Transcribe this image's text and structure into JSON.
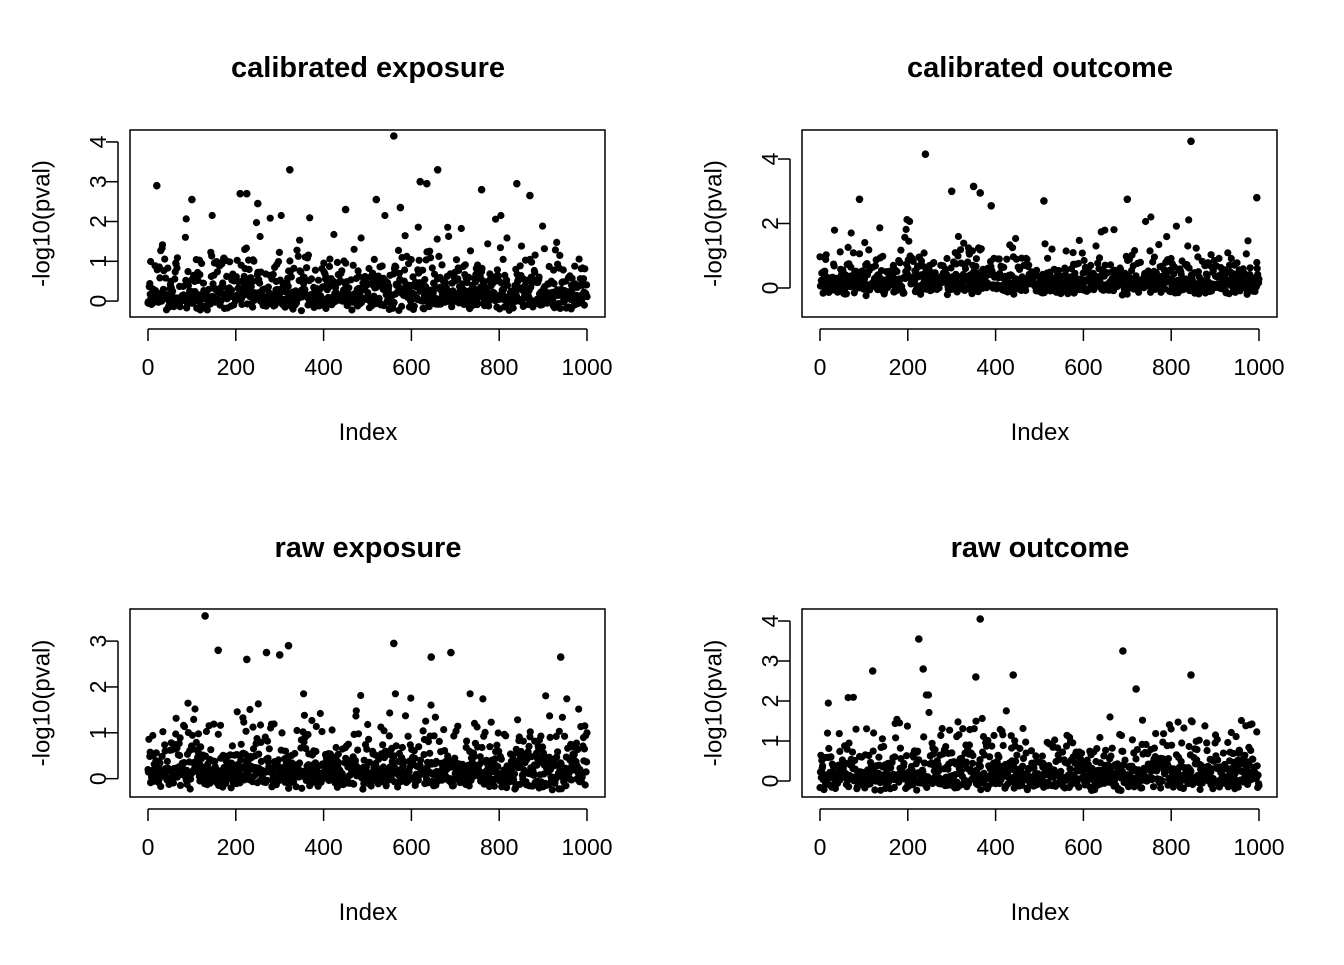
{
  "chart_data": [
    {
      "type": "scatter",
      "title": "calibrated exposure",
      "xlabel": "Index",
      "ylabel": "-log10(pval)",
      "xlim": [
        0,
        1000
      ],
      "ylim": [
        -0.4,
        4.3
      ],
      "xticks": [
        "0",
        "200",
        "400",
        "600",
        "800",
        "1000"
      ],
      "yticks": [
        "0",
        "1",
        "2",
        "3",
        "4"
      ],
      "grid": false,
      "n_points": 1000,
      "series": [
        {
          "x": [
            20,
            225,
            323,
            560,
            620,
            660,
            635,
            840,
            760,
            100,
            210,
            250,
            520,
            450,
            575,
            870
          ],
          "y": [
            2.9,
            2.7,
            3.3,
            4.15,
            3.0,
            3.3,
            2.95,
            2.95,
            2.8,
            2.55,
            2.7,
            2.45,
            2.55,
            2.3,
            2.35,
            2.65
          ]
        }
      ]
    },
    {
      "type": "scatter",
      "title": "calibrated outcome",
      "xlabel": "Index",
      "ylabel": "-log10(pval)",
      "xlim": [
        0,
        1000
      ],
      "ylim": [
        -0.9,
        4.9
      ],
      "xticks": [
        "0",
        "200",
        "400",
        "600",
        "800",
        "1000"
      ],
      "yticks": [
        "0",
        "2",
        "4"
      ],
      "grid": false,
      "n_points": 1000,
      "series": [
        {
          "x": [
            240,
            845,
            350,
            300,
            365,
            995,
            90,
            510,
            700,
            390
          ],
          "y": [
            4.15,
            4.55,
            3.15,
            3.0,
            2.95,
            2.8,
            2.75,
            2.7,
            2.75,
            2.55
          ]
        }
      ]
    },
    {
      "type": "scatter",
      "title": "raw exposure",
      "xlabel": "Index",
      "ylabel": "-log10(pval)",
      "xlim": [
        0,
        1000
      ],
      "ylim": [
        -0.4,
        3.7
      ],
      "xticks": [
        "0",
        "200",
        "400",
        "600",
        "800",
        "1000"
      ],
      "yticks": [
        "0",
        "1",
        "2",
        "3"
      ],
      "grid": false,
      "n_points": 1000,
      "series": [
        {
          "x": [
            130,
            560,
            320,
            160,
            690,
            940,
            270,
            300,
            645,
            225
          ],
          "y": [
            3.55,
            2.95,
            2.9,
            2.8,
            2.75,
            2.65,
            2.75,
            2.7,
            2.65,
            2.6
          ]
        }
      ]
    },
    {
      "type": "scatter",
      "title": "raw outcome",
      "xlabel": "Index",
      "ylabel": "-log10(pval)",
      "xlim": [
        0,
        1000
      ],
      "ylim": [
        -0.4,
        4.3
      ],
      "xticks": [
        "0",
        "200",
        "400",
        "600",
        "800",
        "1000"
      ],
      "yticks": [
        "0",
        "1",
        "2",
        "3",
        "4"
      ],
      "grid": false,
      "n_points": 1000,
      "series": [
        {
          "x": [
            365,
            225,
            690,
            235,
            120,
            440,
            845,
            355,
            720
          ],
          "y": [
            4.05,
            3.55,
            3.25,
            2.8,
            2.75,
            2.65,
            2.65,
            2.6,
            2.3
          ]
        }
      ]
    }
  ]
}
